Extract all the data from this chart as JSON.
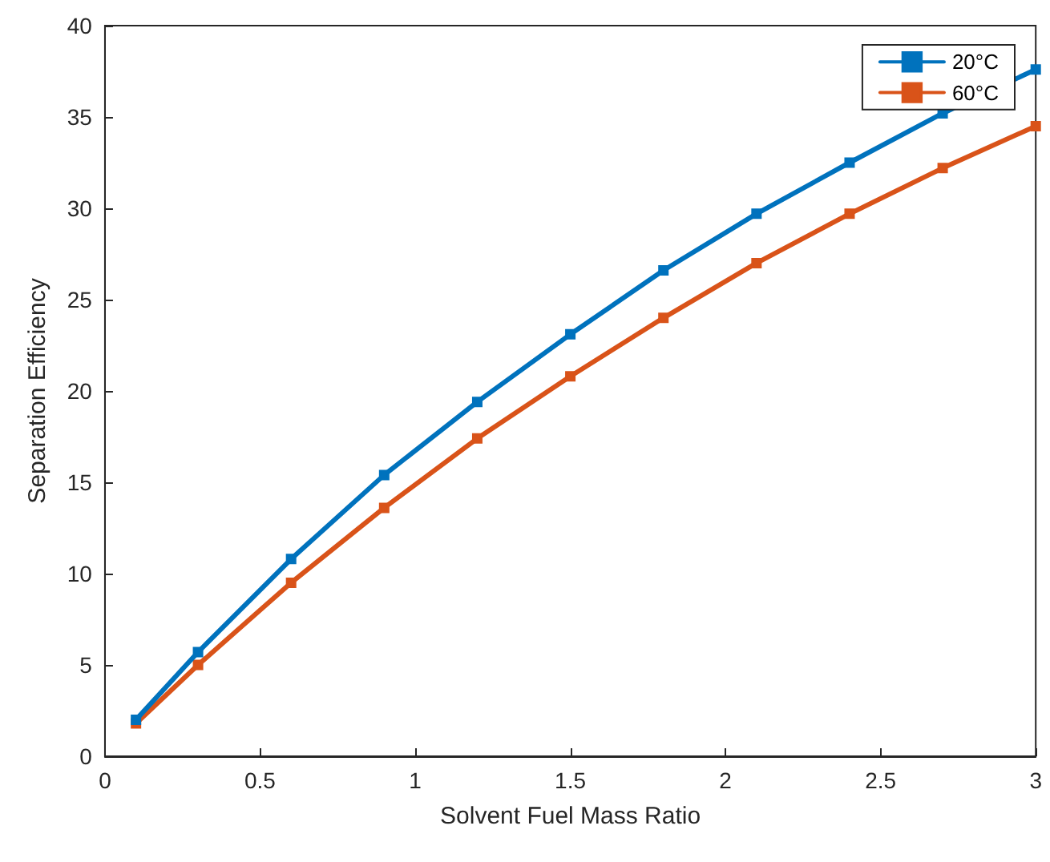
{
  "chart_data": {
    "type": "line",
    "xlabel": "Solvent Fuel Mass Ratio",
    "ylabel": "Separation Efficiency",
    "x": [
      0.1,
      0.3,
      0.6,
      0.9,
      1.2,
      1.5,
      1.8,
      2.1,
      2.4,
      2.7,
      3.0
    ],
    "series": [
      {
        "name": "20°C",
        "color": "#0072bd",
        "values": [
          2.0,
          5.7,
          10.8,
          15.4,
          19.4,
          23.1,
          26.6,
          29.7,
          32.5,
          35.2,
          37.6
        ]
      },
      {
        "name": "60°C",
        "color": "#d95319",
        "values": [
          1.8,
          5.0,
          9.5,
          13.6,
          17.4,
          20.8,
          24.0,
          27.0,
          29.7,
          32.2,
          34.5
        ]
      }
    ],
    "xlim": [
      0,
      3
    ],
    "xticks": [
      0,
      0.5,
      1,
      1.5,
      2,
      2.5,
      3
    ],
    "ylim": [
      0,
      40
    ],
    "yticks": [
      0,
      5,
      10,
      15,
      20,
      25,
      30,
      35,
      40
    ],
    "grid": false,
    "legend": "top right",
    "marker": "square",
    "line_style": "solid"
  }
}
